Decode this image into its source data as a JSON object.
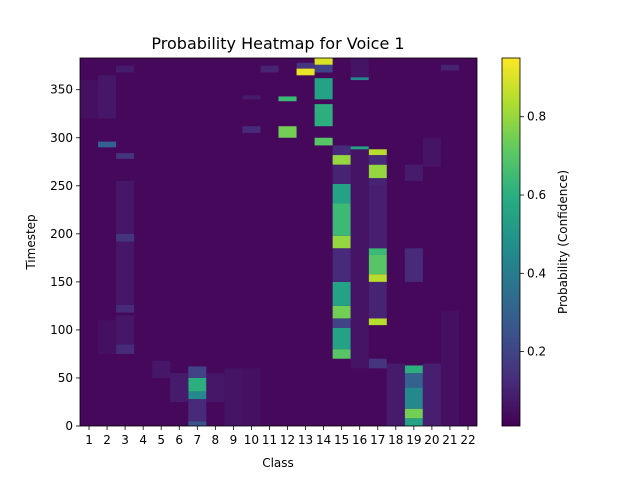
{
  "chart_data": {
    "type": "heatmap",
    "title": "Probability Heatmap for Voice 1",
    "xlabel": "Class",
    "ylabel": "Timestep",
    "x_categories": [
      "1",
      "2",
      "3",
      "4",
      "5",
      "6",
      "7",
      "8",
      "9",
      "10",
      "11",
      "12",
      "13",
      "14",
      "15",
      "16",
      "17",
      "18",
      "19",
      "20",
      "21",
      "22"
    ],
    "y_ticks": [
      0,
      50,
      100,
      150,
      200,
      250,
      300,
      350
    ],
    "ylim": [
      0,
      383
    ],
    "colormap": "viridis",
    "colorbar": {
      "label": "Probability (Confidence)",
      "ticks": [
        0.2,
        0.4,
        0.6,
        0.8
      ],
      "range": [
        0.01,
        0.95
      ]
    },
    "background_value": 0.03,
    "segments": [
      {
        "class": 7,
        "from": 0,
        "to": 5,
        "value": 0.25
      },
      {
        "class": 7,
        "from": 5,
        "to": 28,
        "value": 0.12
      },
      {
        "class": 7,
        "from": 28,
        "to": 36,
        "value": 0.45
      },
      {
        "class": 7,
        "from": 36,
        "to": 50,
        "value": 0.6
      },
      {
        "class": 7,
        "from": 50,
        "to": 62,
        "value": 0.2
      },
      {
        "class": 6,
        "from": 25,
        "to": 55,
        "value": 0.08
      },
      {
        "class": 8,
        "from": 25,
        "to": 55,
        "value": 0.07
      },
      {
        "class": 5,
        "from": 50,
        "to": 68,
        "value": 0.07
      },
      {
        "class": 9,
        "from": 0,
        "to": 60,
        "value": 0.06
      },
      {
        "class": 10,
        "from": 0,
        "to": 60,
        "value": 0.05
      },
      {
        "class": 19,
        "from": 0,
        "to": 8,
        "value": 0.55
      },
      {
        "class": 19,
        "from": 8,
        "to": 18,
        "value": 0.75
      },
      {
        "class": 19,
        "from": 18,
        "to": 40,
        "value": 0.45
      },
      {
        "class": 19,
        "from": 40,
        "to": 55,
        "value": 0.3
      },
      {
        "class": 19,
        "from": 55,
        "to": 63,
        "value": 0.6
      },
      {
        "class": 18,
        "from": 0,
        "to": 65,
        "value": 0.08
      },
      {
        "class": 20,
        "from": 0,
        "to": 65,
        "value": 0.09
      },
      {
        "class": 19,
        "from": 150,
        "to": 185,
        "value": 0.12
      },
      {
        "class": 19,
        "from": 255,
        "to": 272,
        "value": 0.08
      },
      {
        "class": 15,
        "from": 70,
        "to": 80,
        "value": 0.7
      },
      {
        "class": 15,
        "from": 80,
        "to": 102,
        "value": 0.55
      },
      {
        "class": 15,
        "from": 102,
        "to": 112,
        "value": 0.2
      },
      {
        "class": 15,
        "from": 112,
        "to": 125,
        "value": 0.75
      },
      {
        "class": 15,
        "from": 125,
        "to": 150,
        "value": 0.55
      },
      {
        "class": 15,
        "from": 150,
        "to": 185,
        "value": 0.12
      },
      {
        "class": 15,
        "from": 185,
        "to": 198,
        "value": 0.8
      },
      {
        "class": 15,
        "from": 198,
        "to": 232,
        "value": 0.65
      },
      {
        "class": 15,
        "from": 232,
        "to": 252,
        "value": 0.55
      },
      {
        "class": 15,
        "from": 252,
        "to": 272,
        "value": 0.1
      },
      {
        "class": 15,
        "from": 272,
        "to": 282,
        "value": 0.8
      },
      {
        "class": 15,
        "from": 282,
        "to": 292,
        "value": 0.12
      },
      {
        "class": 17,
        "from": 60,
        "to": 70,
        "value": 0.15
      },
      {
        "class": 17,
        "from": 105,
        "to": 112,
        "value": 0.85
      },
      {
        "class": 17,
        "from": 112,
        "to": 150,
        "value": 0.1
      },
      {
        "class": 17,
        "from": 150,
        "to": 158,
        "value": 0.85
      },
      {
        "class": 17,
        "from": 158,
        "to": 178,
        "value": 0.7
      },
      {
        "class": 17,
        "from": 178,
        "to": 185,
        "value": 0.65
      },
      {
        "class": 17,
        "from": 185,
        "to": 250,
        "value": 0.09
      },
      {
        "class": 17,
        "from": 250,
        "to": 258,
        "value": 0.1
      },
      {
        "class": 17,
        "from": 258,
        "to": 272,
        "value": 0.8
      },
      {
        "class": 17,
        "from": 272,
        "to": 282,
        "value": 0.12
      },
      {
        "class": 17,
        "from": 282,
        "to": 288,
        "value": 0.85
      },
      {
        "class": 16,
        "from": 60,
        "to": 290,
        "value": 0.06
      },
      {
        "class": 16,
        "from": 288,
        "to": 291,
        "value": 0.55
      },
      {
        "class": 16,
        "from": 360,
        "to": 363,
        "value": 0.45
      },
      {
        "class": 16,
        "from": 363,
        "to": 383,
        "value": 0.06
      },
      {
        "class": 14,
        "from": 292,
        "to": 300,
        "value": 0.7
      },
      {
        "class": 14,
        "from": 312,
        "to": 335,
        "value": 0.6
      },
      {
        "class": 14,
        "from": 340,
        "to": 362,
        "value": 0.55
      },
      {
        "class": 14,
        "from": 368,
        "to": 376,
        "value": 0.2
      },
      {
        "class": 14,
        "from": 376,
        "to": 383,
        "value": 0.9
      },
      {
        "class": 13,
        "from": 365,
        "to": 372,
        "value": 0.92
      },
      {
        "class": 13,
        "from": 372,
        "to": 378,
        "value": 0.15
      },
      {
        "class": 12,
        "from": 300,
        "to": 312,
        "value": 0.75
      },
      {
        "class": 12,
        "from": 338,
        "to": 343,
        "value": 0.65
      },
      {
        "class": 11,
        "from": 368,
        "to": 375,
        "value": 0.1
      },
      {
        "class": 10,
        "from": 305,
        "to": 312,
        "value": 0.12
      },
      {
        "class": 10,
        "from": 340,
        "to": 344,
        "value": 0.08
      },
      {
        "class": 3,
        "from": 75,
        "to": 85,
        "value": 0.12
      },
      {
        "class": 3,
        "from": 85,
        "to": 115,
        "value": 0.07
      },
      {
        "class": 3,
        "from": 118,
        "to": 126,
        "value": 0.12
      },
      {
        "class": 3,
        "from": 126,
        "to": 192,
        "value": 0.07
      },
      {
        "class": 3,
        "from": 192,
        "to": 200,
        "value": 0.15
      },
      {
        "class": 3,
        "from": 200,
        "to": 255,
        "value": 0.07
      },
      {
        "class": 3,
        "from": 278,
        "to": 284,
        "value": 0.15
      },
      {
        "class": 3,
        "from": 368,
        "to": 375,
        "value": 0.08
      },
      {
        "class": 2,
        "from": 75,
        "to": 110,
        "value": 0.05
      },
      {
        "class": 2,
        "from": 290,
        "to": 296,
        "value": 0.3
      },
      {
        "class": 2,
        "from": 320,
        "to": 365,
        "value": 0.07
      },
      {
        "class": 1,
        "from": 320,
        "to": 360,
        "value": 0.05
      },
      {
        "class": 21,
        "from": 0,
        "to": 120,
        "value": 0.05
      },
      {
        "class": 21,
        "from": 370,
        "to": 376,
        "value": 0.1
      },
      {
        "class": 20,
        "from": 270,
        "to": 300,
        "value": 0.06
      }
    ]
  }
}
